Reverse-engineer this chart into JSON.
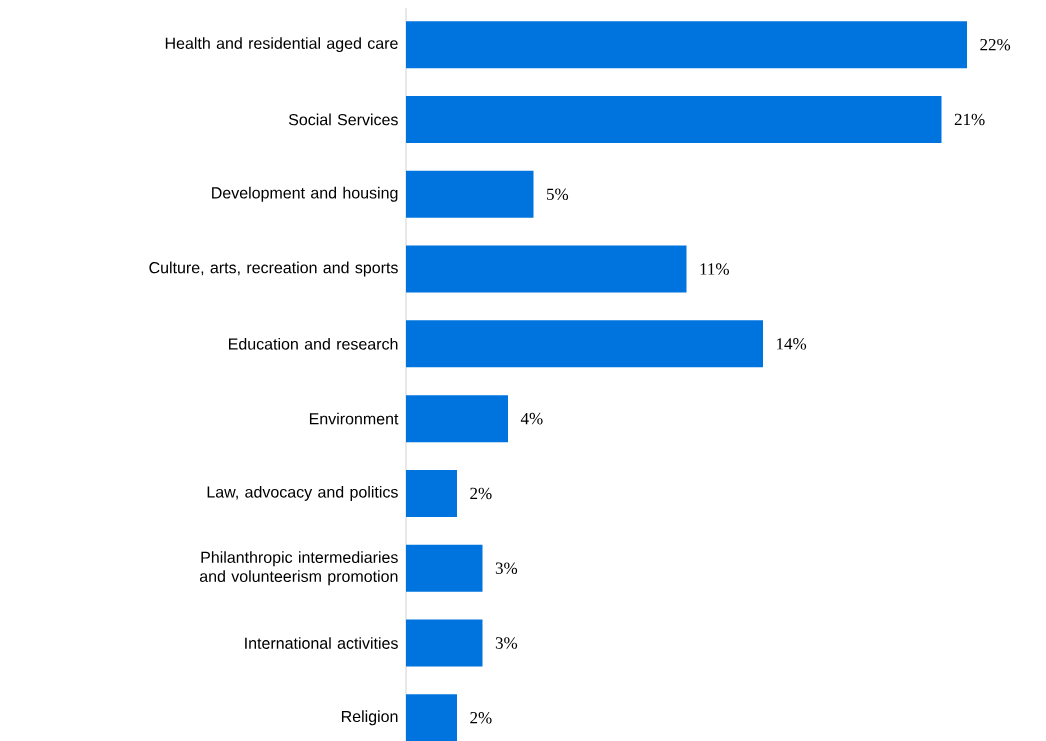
{
  "chart_data": {
    "type": "bar",
    "orientation": "horizontal",
    "categories": [
      "Health and residential aged care",
      "Social Services",
      "Development and housing",
      "Culture, arts, recreation and sports",
      "Education and research",
      "Environment",
      "Law, advocacy and politics",
      "Philanthropic intermediaries and volunteerism promotion",
      "International activities",
      "Religion"
    ],
    "values": [
      22,
      21,
      5,
      11,
      14,
      4,
      2,
      3,
      3,
      2
    ],
    "value_labels": [
      "22%",
      "21%",
      "5%",
      "11%",
      "14%",
      "4%",
      "2%",
      "3%",
      "3%",
      "2%"
    ],
    "color": "#0074de"
  }
}
